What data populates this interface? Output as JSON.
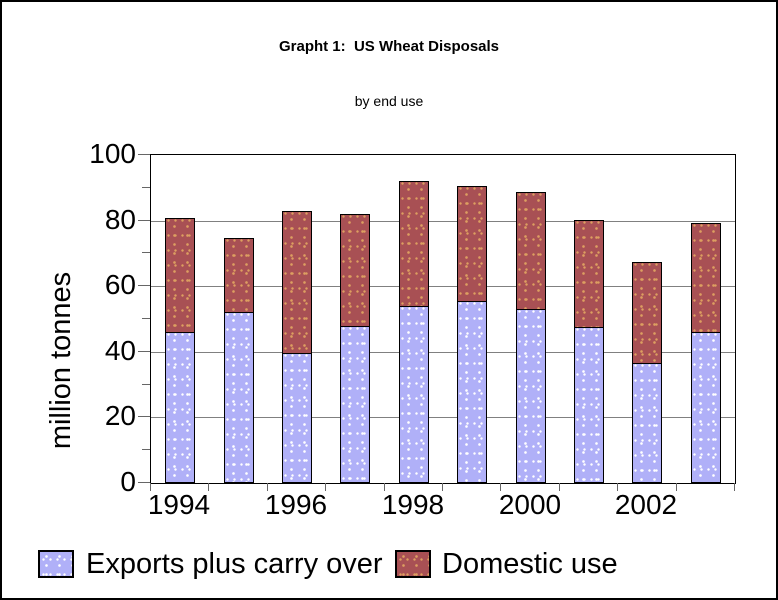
{
  "title": "Grapht 1:  US Wheat Disposals",
  "subtitle": "by end use",
  "chart_data": {
    "type": "bar",
    "stacked": true,
    "title": "Grapht 1:  US Wheat Disposals",
    "subtitle": "by end use",
    "xlabel": "",
    "ylabel": "million tonnes",
    "ylim": [
      0,
      100
    ],
    "y_major_ticks": [
      0,
      20,
      40,
      60,
      80,
      100
    ],
    "y_minor_ticks": [
      10,
      30,
      50,
      70,
      90
    ],
    "grid": "horizontal",
    "legend_position": "bottom",
    "categories": [
      "1994",
      "1995",
      "1996",
      "1997",
      "1998",
      "1999",
      "2000",
      "2001",
      "2002",
      "2003"
    ],
    "x_tick_labels": [
      "1994",
      "1996",
      "1998",
      "2000",
      "2002"
    ],
    "x_label_slot_positions": [
      0,
      2,
      4,
      6,
      8
    ],
    "series": [
      {
        "name": "Exports plus carry over",
        "color": "#b0b0f8",
        "dot_color": "#ffffff",
        "values": [
          46,
          52,
          39.5,
          48,
          54,
          55.5,
          53,
          47.5,
          36.5,
          46
        ]
      },
      {
        "name": "Domestic use",
        "color": "#a85054",
        "dot_color": "#dd9f60",
        "values": [
          35,
          23,
          43.5,
          34.5,
          38.5,
          35.5,
          36,
          33,
          31,
          33.5
        ]
      }
    ],
    "stack_totals": [
      81,
      75,
      83,
      82.5,
      92.5,
      91,
      89,
      80.5,
      67.5,
      79.5
    ]
  },
  "legend": {
    "items": [
      {
        "label": "Exports plus carry over",
        "color": "#b0b0f8"
      },
      {
        "label": "Domestic use",
        "color": "#a85054"
      }
    ]
  },
  "colors": {
    "exports_fill": "#b0b0f8",
    "domestic_fill": "#a85054",
    "gridline": "#808080",
    "axis": "#000000",
    "background": "#ffffff"
  }
}
